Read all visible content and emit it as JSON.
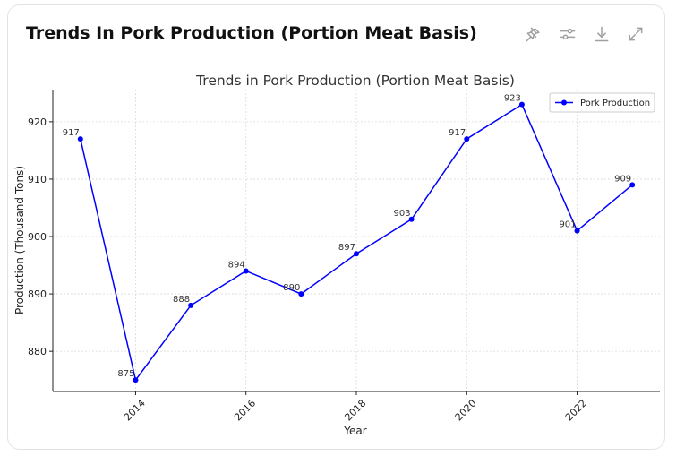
{
  "header": {
    "title": "Trends In Pork Production (Portion Meat Basis)",
    "tools": [
      {
        "name": "pin-icon"
      },
      {
        "name": "sliders-icon"
      },
      {
        "name": "download-icon"
      },
      {
        "name": "expand-icon"
      }
    ]
  },
  "chart_data": {
    "type": "line",
    "title": "Trends in Pork Production (Portion Meat Basis)",
    "xlabel": "Year",
    "ylabel": "Production (Thousand Tons)",
    "x": [
      2013,
      2014,
      2015,
      2016,
      2017,
      2018,
      2019,
      2020,
      2021,
      2022,
      2023
    ],
    "series": [
      {
        "name": "Pork Production",
        "values": [
          917,
          875,
          888,
          894,
          890,
          897,
          903,
          917,
          923,
          901,
          909
        ],
        "color": "#0000ff"
      }
    ],
    "data_labels": [
      "917",
      "875",
      "888",
      "894",
      "890",
      "897",
      "903",
      "917",
      "923",
      "901",
      "909"
    ],
    "xticks": [
      2014,
      2016,
      2018,
      2020,
      2022
    ],
    "yticks": [
      880,
      890,
      900,
      910,
      920
    ],
    "xlim": [
      2012.5,
      2023.5
    ],
    "ylim": [
      873,
      925.6
    ],
    "grid": true,
    "legend": "top-right"
  }
}
